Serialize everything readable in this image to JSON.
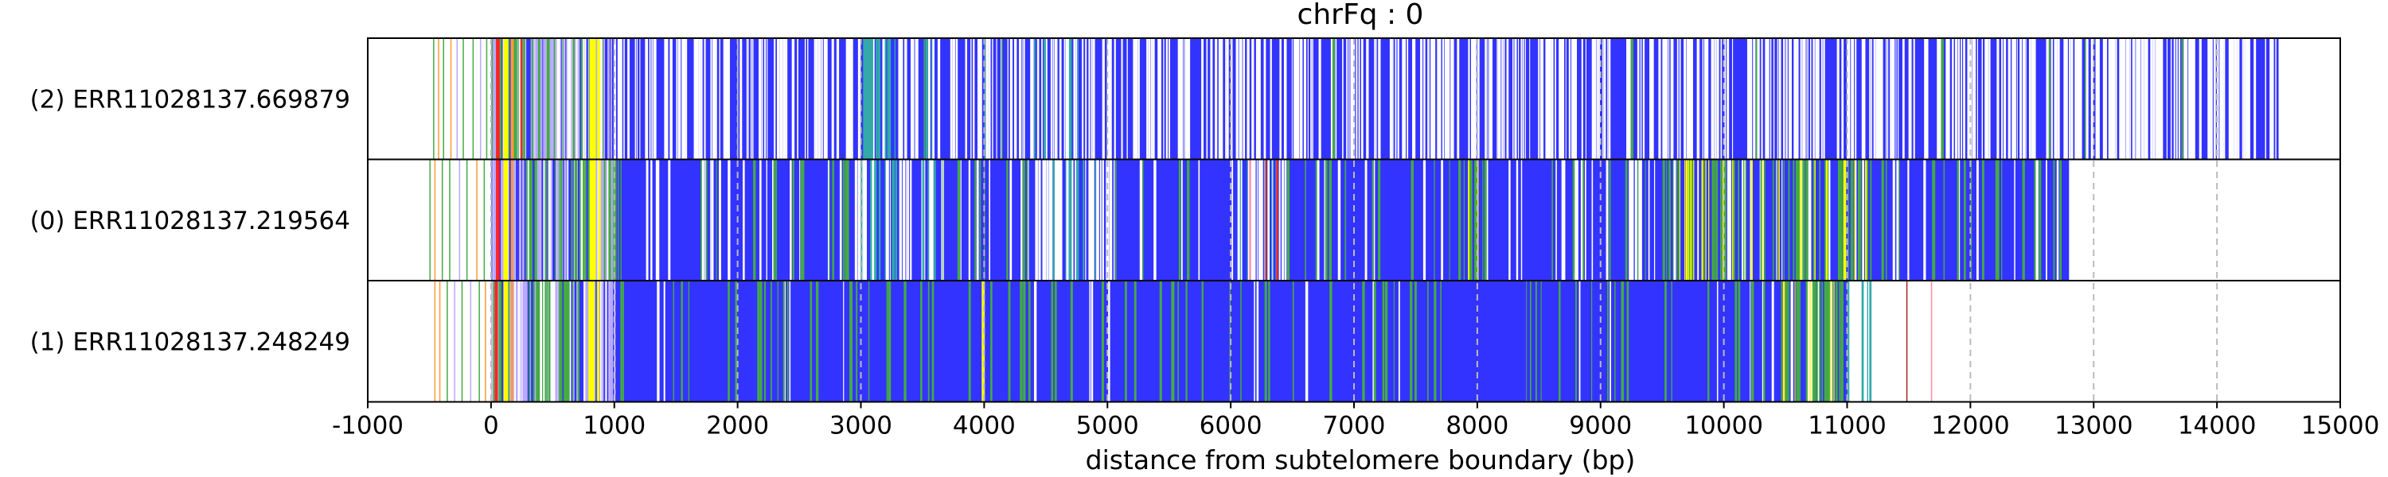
{
  "chart_data": {
    "type": "track",
    "title": "chrFq : 0",
    "xlabel": "distance from subtelomere boundary (bp)",
    "ylabel": "",
    "xlim": [
      -1000,
      15000
    ],
    "xticks": [
      -1000,
      0,
      1000,
      2000,
      3000,
      4000,
      5000,
      6000,
      7000,
      8000,
      9000,
      10000,
      11000,
      12000,
      13000,
      14000,
      15000
    ],
    "tick_labels": [
      "-1000",
      "0",
      "1000",
      "2000",
      "3000",
      "4000",
      "5000",
      "6000",
      "7000",
      "8000",
      "9000",
      "10000",
      "11000",
      "12000",
      "13000",
      "14000",
      "15000"
    ],
    "grid": "vertical dashed at each x tick",
    "colors": {
      "base": "#3333ff",
      "gap": "#ffffff",
      "green": "#44aa44",
      "teal": "#33aaaa",
      "yellow": "#ffff00",
      "red": "#ff2222",
      "orange": "#ff9933",
      "lavender": "#b8a8ff",
      "pink": "#ff88aa",
      "maroon": "#aa2222",
      "grid": "#bbbbbb"
    },
    "reads": [
      {
        "label": "(2) ERR11028137.669879",
        "start": -500,
        "end": 14500,
        "main_start": 980,
        "gap_density": 0.45,
        "green_density": 0.01,
        "teal_zones": [
          [
            2950,
            3600
          ]
        ],
        "green_zones": [],
        "gap_zones": [
          [
            4400,
            4800
          ]
        ],
        "pre_lines": [
          {
            "x": -470,
            "color": "green"
          },
          {
            "x": -430,
            "color": "orange"
          },
          {
            "x": -390,
            "color": "green"
          },
          {
            "x": -330,
            "color": "orange"
          },
          {
            "x": -280,
            "color": "lavender"
          },
          {
            "x": -230,
            "color": "green"
          },
          {
            "x": -150,
            "color": "green"
          },
          {
            "x": -90,
            "color": "lavender"
          },
          {
            "x": -40,
            "color": "green"
          }
        ],
        "features": [
          {
            "x": 40,
            "w": 30,
            "color": "red"
          },
          {
            "x": 100,
            "w": 40,
            "color": "yellow"
          },
          {
            "x": 160,
            "w": 25,
            "color": "orange"
          },
          {
            "x": 240,
            "w": 15,
            "color": "red"
          },
          {
            "x": 800,
            "w": 50,
            "color": "yellow"
          },
          {
            "x": 860,
            "w": 25,
            "color": "yellow"
          }
        ],
        "marks": [
          {
            "x": 3050,
            "w": 12,
            "color": "teal"
          },
          {
            "x": 3510,
            "w": 10,
            "color": "green"
          },
          {
            "x": 4000,
            "w": 8,
            "color": "teal"
          }
        ]
      },
      {
        "label": "(0) ERR11028137.219564",
        "start": -500,
        "end": 12800,
        "main_start": 1000,
        "gap_density": 0.1,
        "green_density": 0.08,
        "teal_zones": [
          [
            2950,
            3600
          ]
        ],
        "green_zones": [
          [
            7900,
            8100
          ],
          [
            9500,
            11200
          ]
        ],
        "gap_zones": [
          [
            4400,
            5000
          ],
          [
            6050,
            6450
          ]
        ],
        "pre_lines": [
          {
            "x": -500,
            "color": "green"
          },
          {
            "x": -460,
            "color": "orange"
          },
          {
            "x": -400,
            "color": "green"
          },
          {
            "x": -340,
            "color": "green"
          },
          {
            "x": -260,
            "color": "lavender"
          },
          {
            "x": -200,
            "color": "green"
          },
          {
            "x": -120,
            "color": "orange"
          },
          {
            "x": -60,
            "color": "green"
          }
        ],
        "features": [
          {
            "x": 40,
            "w": 30,
            "color": "red"
          },
          {
            "x": 100,
            "w": 40,
            "color": "yellow"
          },
          {
            "x": 160,
            "w": 20,
            "color": "orange"
          },
          {
            "x": 800,
            "w": 50,
            "color": "yellow"
          },
          {
            "x": 870,
            "w": 20,
            "color": "yellow"
          },
          {
            "x": 6150,
            "w": 15,
            "color": "pink"
          },
          {
            "x": 6280,
            "w": 15,
            "color": "maroon"
          },
          {
            "x": 6370,
            "w": 15,
            "color": "red"
          }
        ],
        "marks": [
          {
            "x": 3000,
            "w": 12,
            "color": "teal"
          },
          {
            "x": 3080,
            "w": 10,
            "color": "teal"
          }
        ]
      },
      {
        "label": "(1) ERR11028137.248249",
        "start": -500,
        "end": 11200,
        "main_start": 1000,
        "gap_density": 0.03,
        "green_density": 0.1,
        "teal_zones": [],
        "green_zones": [
          [
            10300,
            11000
          ]
        ],
        "gap_zones": [],
        "tail_teal": [
          11000,
          11200
        ],
        "pre_lines": [
          {
            "x": -460,
            "color": "orange"
          },
          {
            "x": -420,
            "color": "orange"
          },
          {
            "x": -360,
            "color": "green"
          },
          {
            "x": -300,
            "color": "lavender"
          },
          {
            "x": -240,
            "color": "green"
          },
          {
            "x": -170,
            "color": "lavender"
          },
          {
            "x": -100,
            "color": "green"
          },
          {
            "x": -50,
            "color": "orange"
          }
        ],
        "features": [
          {
            "x": 30,
            "w": 25,
            "color": "red"
          },
          {
            "x": 100,
            "w": 40,
            "color": "yellow"
          },
          {
            "x": 160,
            "w": 20,
            "color": "orange"
          },
          {
            "x": 790,
            "w": 50,
            "color": "yellow"
          },
          {
            "x": 860,
            "w": 20,
            "color": "yellow"
          },
          {
            "x": 3980,
            "w": 25,
            "color": "yellow"
          },
          {
            "x": 4700,
            "w": 20,
            "color": "green"
          },
          {
            "x": 11480,
            "w": 8,
            "color": "maroon"
          },
          {
            "x": 11680,
            "w": 8,
            "color": "pink"
          }
        ],
        "marks": []
      }
    ]
  }
}
